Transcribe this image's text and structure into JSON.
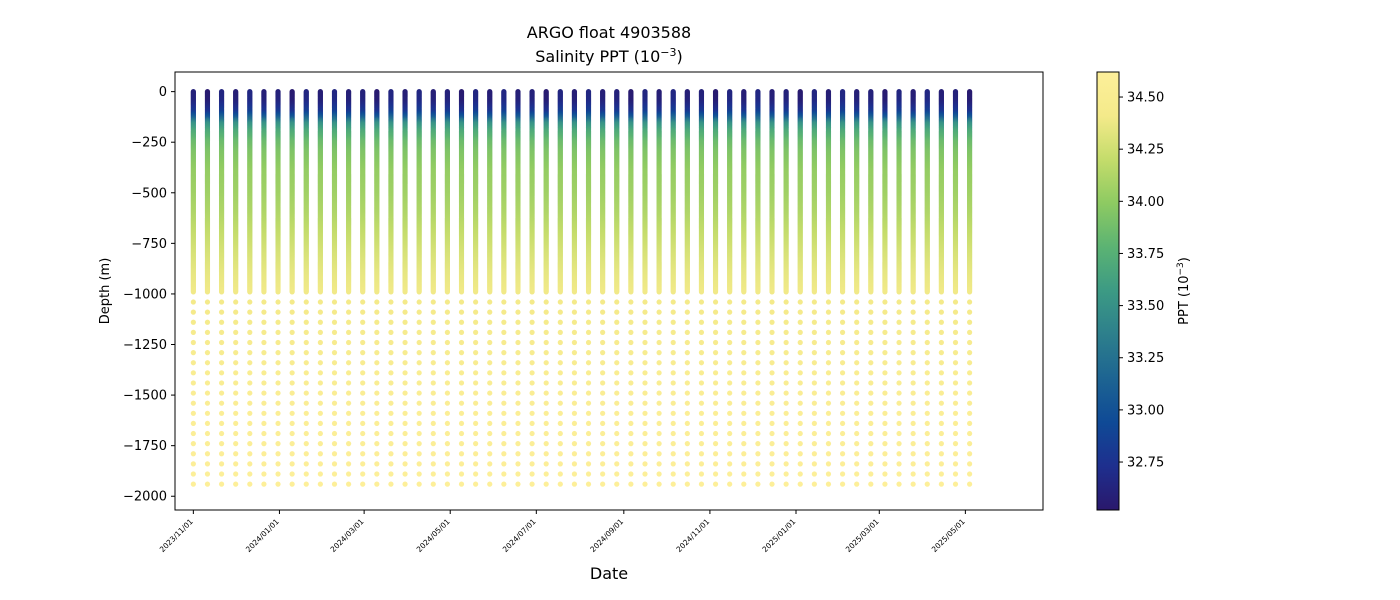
{
  "chart_data": {
    "type": "scatter",
    "title": "ARGO float 4903588",
    "subtitle_prefix": "Salinity PPT (10",
    "subtitle_exp": "−3",
    "subtitle_suffix": ")",
    "xlabel": "Date",
    "ylabel": "Depth (m)",
    "xlim": [
      "2023-10-19",
      "2025-06-25"
    ],
    "ylim": [
      -2068,
      97
    ],
    "x_ticks": [
      "2023/11/01",
      "2024/01/01",
      "2024/03/01",
      "2024/05/01",
      "2024/07/01",
      "2024/09/01",
      "2024/11/01",
      "2025/01/01",
      "2025/03/01",
      "2025/05/01"
    ],
    "y_ticks": [
      0,
      -250,
      -500,
      -750,
      -1000,
      -1250,
      -1500,
      -1750,
      -2000
    ],
    "y_tick_labels": [
      "0",
      "−250",
      "−500",
      "−750",
      "−1000",
      "−1250",
      "−1500",
      "−1750",
      "−2000"
    ],
    "profile_start": "2023-11-01",
    "profile_interval_days": 10,
    "profile_count": 56,
    "depth_profile": {
      "depth": [
        0,
        -50,
        -100,
        -130,
        -160,
        -200,
        -250,
        -300,
        -400,
        -500,
        -600,
        -700,
        -800,
        -900,
        -1000,
        -1500,
        -2000
      ],
      "salinity": [
        32.6,
        32.63,
        32.8,
        33.1,
        33.5,
        33.7,
        33.85,
        33.93,
        34.02,
        34.06,
        34.12,
        34.2,
        34.28,
        34.35,
        34.4,
        34.55,
        34.62
      ]
    },
    "colorbar": {
      "label_prefix": "PPT (10",
      "label_exp": "−3",
      "label_suffix": ")",
      "range": [
        32.52,
        34.62
      ],
      "ticks": [
        32.75,
        33.0,
        33.25,
        33.5,
        33.75,
        34.0,
        34.25,
        34.5
      ],
      "tick_labels": [
        "32.75",
        "33.00",
        "33.25",
        "33.50",
        "33.75",
        "34.00",
        "34.25",
        "34.50"
      ],
      "colormap": "haline",
      "stops": [
        "#2a186c",
        "#1e2f8e",
        "#0f4a96",
        "#1d6492",
        "#2d7f8c",
        "#3c9a84",
        "#5bb373",
        "#8dca62",
        "#c4dc6b",
        "#f4ea8a",
        "#fdef9a"
      ]
    },
    "grid": false,
    "legend": "none"
  }
}
